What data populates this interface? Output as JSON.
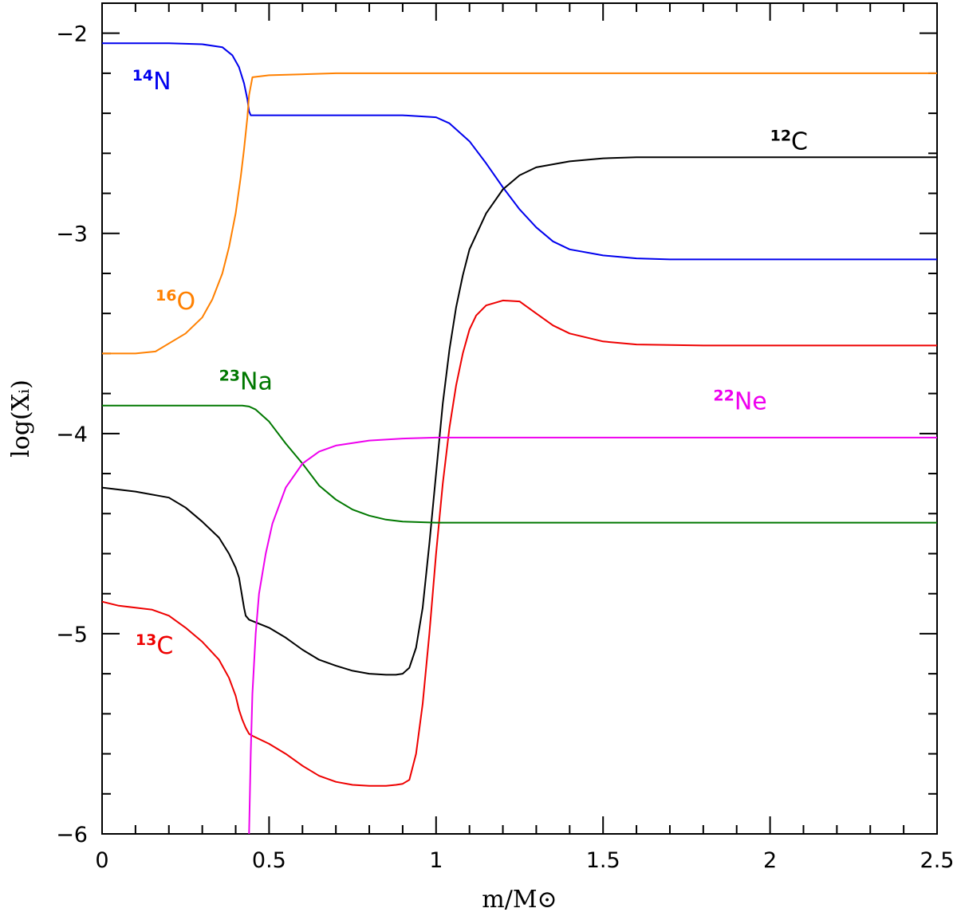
{
  "chart_data": {
    "type": "line",
    "title": "",
    "xlabel": "m/M⊙",
    "ylabel": "log(Xᵢ)",
    "xlim": [
      0,
      2.5
    ],
    "ylim": [
      -6,
      -1.85
    ],
    "grid": false,
    "x_ticks": [
      {
        "v": 0,
        "label": "0"
      },
      {
        "v": 0.5,
        "label": "0.5"
      },
      {
        "v": 1,
        "label": "1"
      },
      {
        "v": 1.5,
        "label": "1.5"
      },
      {
        "v": 2,
        "label": "2"
      },
      {
        "v": 2.5,
        "label": "2.5"
      }
    ],
    "y_ticks": [
      {
        "v": -2,
        "label": "−2"
      },
      {
        "v": -3,
        "label": "−3"
      },
      {
        "v": -4,
        "label": "−4"
      },
      {
        "v": -5,
        "label": "−5"
      },
      {
        "v": -6,
        "label": "−6"
      }
    ],
    "x_minor_step": 0.1,
    "y_minor_step": 0.2,
    "series": [
      {
        "name": "14N",
        "iso": "14",
        "el": "N",
        "color": "#0000ee",
        "label_at": [
          0.09,
          -2.28
        ],
        "x": [
          0,
          0.1,
          0.2,
          0.3,
          0.36,
          0.39,
          0.41,
          0.425,
          0.435,
          0.44,
          0.445,
          0.5,
          0.7,
          0.9,
          1.0,
          1.04,
          1.1,
          1.15,
          1.2,
          1.25,
          1.3,
          1.35,
          1.4,
          1.5,
          1.6,
          1.7,
          1.8,
          2.0,
          2.5
        ],
        "y": [
          -2.05,
          -2.05,
          -2.05,
          -2.055,
          -2.07,
          -2.11,
          -2.17,
          -2.25,
          -2.33,
          -2.39,
          -2.41,
          -2.41,
          -2.41,
          -2.41,
          -2.42,
          -2.45,
          -2.54,
          -2.65,
          -2.77,
          -2.88,
          -2.97,
          -3.04,
          -3.08,
          -3.11,
          -3.125,
          -3.13,
          -3.13,
          -3.13,
          -3.13
        ]
      },
      {
        "name": "16O",
        "iso": "16",
        "el": "O",
        "color": "#ff8000",
        "label_at": [
          0.16,
          -3.38
        ],
        "x": [
          0,
          0.1,
          0.16,
          0.2,
          0.25,
          0.3,
          0.33,
          0.36,
          0.38,
          0.4,
          0.415,
          0.425,
          0.435,
          0.44,
          0.45,
          0.5,
          0.7,
          1.0,
          1.5,
          2.0,
          2.5
        ],
        "y": [
          -3.6,
          -3.6,
          -3.59,
          -3.55,
          -3.5,
          -3.42,
          -3.33,
          -3.2,
          -3.07,
          -2.9,
          -2.72,
          -2.58,
          -2.42,
          -2.31,
          -2.22,
          -2.21,
          -2.2,
          -2.2,
          -2.2,
          -2.2,
          -2.2
        ]
      },
      {
        "name": "12C",
        "iso": "12",
        "el": "C",
        "color": "#000000",
        "label_at": [
          2.0,
          -2.58
        ],
        "x": [
          0,
          0.1,
          0.2,
          0.25,
          0.3,
          0.35,
          0.38,
          0.4,
          0.41,
          0.415,
          0.42,
          0.425,
          0.43,
          0.44,
          0.5,
          0.55,
          0.6,
          0.65,
          0.7,
          0.75,
          0.8,
          0.85,
          0.88,
          0.9,
          0.92,
          0.94,
          0.96,
          0.98,
          1.0,
          1.02,
          1.04,
          1.06,
          1.08,
          1.1,
          1.15,
          1.2,
          1.25,
          1.3,
          1.4,
          1.5,
          1.6,
          1.8,
          2.0,
          2.5
        ],
        "y": [
          -4.27,
          -4.29,
          -4.32,
          -4.37,
          -4.44,
          -4.52,
          -4.6,
          -4.67,
          -4.72,
          -4.77,
          -4.82,
          -4.87,
          -4.91,
          -4.93,
          -4.97,
          -5.02,
          -5.08,
          -5.13,
          -5.16,
          -5.185,
          -5.2,
          -5.205,
          -5.205,
          -5.2,
          -5.17,
          -5.07,
          -4.87,
          -4.55,
          -4.2,
          -3.85,
          -3.58,
          -3.37,
          -3.21,
          -3.08,
          -2.9,
          -2.78,
          -2.71,
          -2.67,
          -2.64,
          -2.625,
          -2.62,
          -2.62,
          -2.62,
          -2.62
        ]
      },
      {
        "name": "13C",
        "iso": "13",
        "el": "C",
        "color": "#ee0000",
        "label_at": [
          0.1,
          -5.1
        ],
        "x": [
          0,
          0.05,
          0.1,
          0.15,
          0.2,
          0.25,
          0.3,
          0.35,
          0.38,
          0.4,
          0.41,
          0.42,
          0.43,
          0.44,
          0.45,
          0.5,
          0.55,
          0.6,
          0.65,
          0.7,
          0.75,
          0.8,
          0.85,
          0.88,
          0.9,
          0.92,
          0.94,
          0.96,
          0.98,
          1.0,
          1.02,
          1.04,
          1.06,
          1.08,
          1.1,
          1.12,
          1.15,
          1.2,
          1.25,
          1.3,
          1.35,
          1.4,
          1.5,
          1.6,
          1.8,
          2.0,
          2.5
        ],
        "y": [
          -4.84,
          -4.86,
          -4.87,
          -4.88,
          -4.91,
          -4.97,
          -5.04,
          -5.13,
          -5.22,
          -5.31,
          -5.38,
          -5.43,
          -5.47,
          -5.5,
          -5.51,
          -5.55,
          -5.6,
          -5.66,
          -5.71,
          -5.74,
          -5.755,
          -5.76,
          -5.76,
          -5.755,
          -5.75,
          -5.73,
          -5.6,
          -5.35,
          -5.0,
          -4.6,
          -4.25,
          -3.97,
          -3.76,
          -3.6,
          -3.48,
          -3.41,
          -3.36,
          -3.335,
          -3.34,
          -3.4,
          -3.46,
          -3.5,
          -3.54,
          -3.555,
          -3.56,
          -3.56,
          -3.56
        ]
      },
      {
        "name": "23Na",
        "iso": "23",
        "el": "Na",
        "color": "#007800",
        "label_at": [
          0.35,
          -3.78
        ],
        "x": [
          0,
          0.1,
          0.2,
          0.3,
          0.35,
          0.38,
          0.4,
          0.42,
          0.44,
          0.46,
          0.5,
          0.55,
          0.6,
          0.65,
          0.7,
          0.75,
          0.8,
          0.85,
          0.9,
          1.0,
          1.5,
          2.0,
          2.5
        ],
        "y": [
          -3.86,
          -3.86,
          -3.86,
          -3.86,
          -3.86,
          -3.86,
          -3.86,
          -3.86,
          -3.865,
          -3.88,
          -3.94,
          -4.05,
          -4.15,
          -4.26,
          -4.33,
          -4.38,
          -4.41,
          -4.43,
          -4.44,
          -4.445,
          -4.445,
          -4.445,
          -4.445
        ]
      },
      {
        "name": "22Ne",
        "iso": "22",
        "el": "Ne",
        "color": "#ee00ee",
        "label_at": [
          1.83,
          -3.88
        ],
        "x": [
          0.44,
          0.445,
          0.45,
          0.46,
          0.47,
          0.49,
          0.51,
          0.55,
          0.6,
          0.65,
          0.7,
          0.8,
          0.9,
          1.0,
          1.5,
          2.0,
          2.5
        ],
        "y": [
          -6.0,
          -5.6,
          -5.3,
          -5.0,
          -4.8,
          -4.6,
          -4.45,
          -4.27,
          -4.15,
          -4.09,
          -4.06,
          -4.035,
          -4.025,
          -4.02,
          -4.02,
          -4.02,
          -4.02
        ]
      }
    ]
  }
}
